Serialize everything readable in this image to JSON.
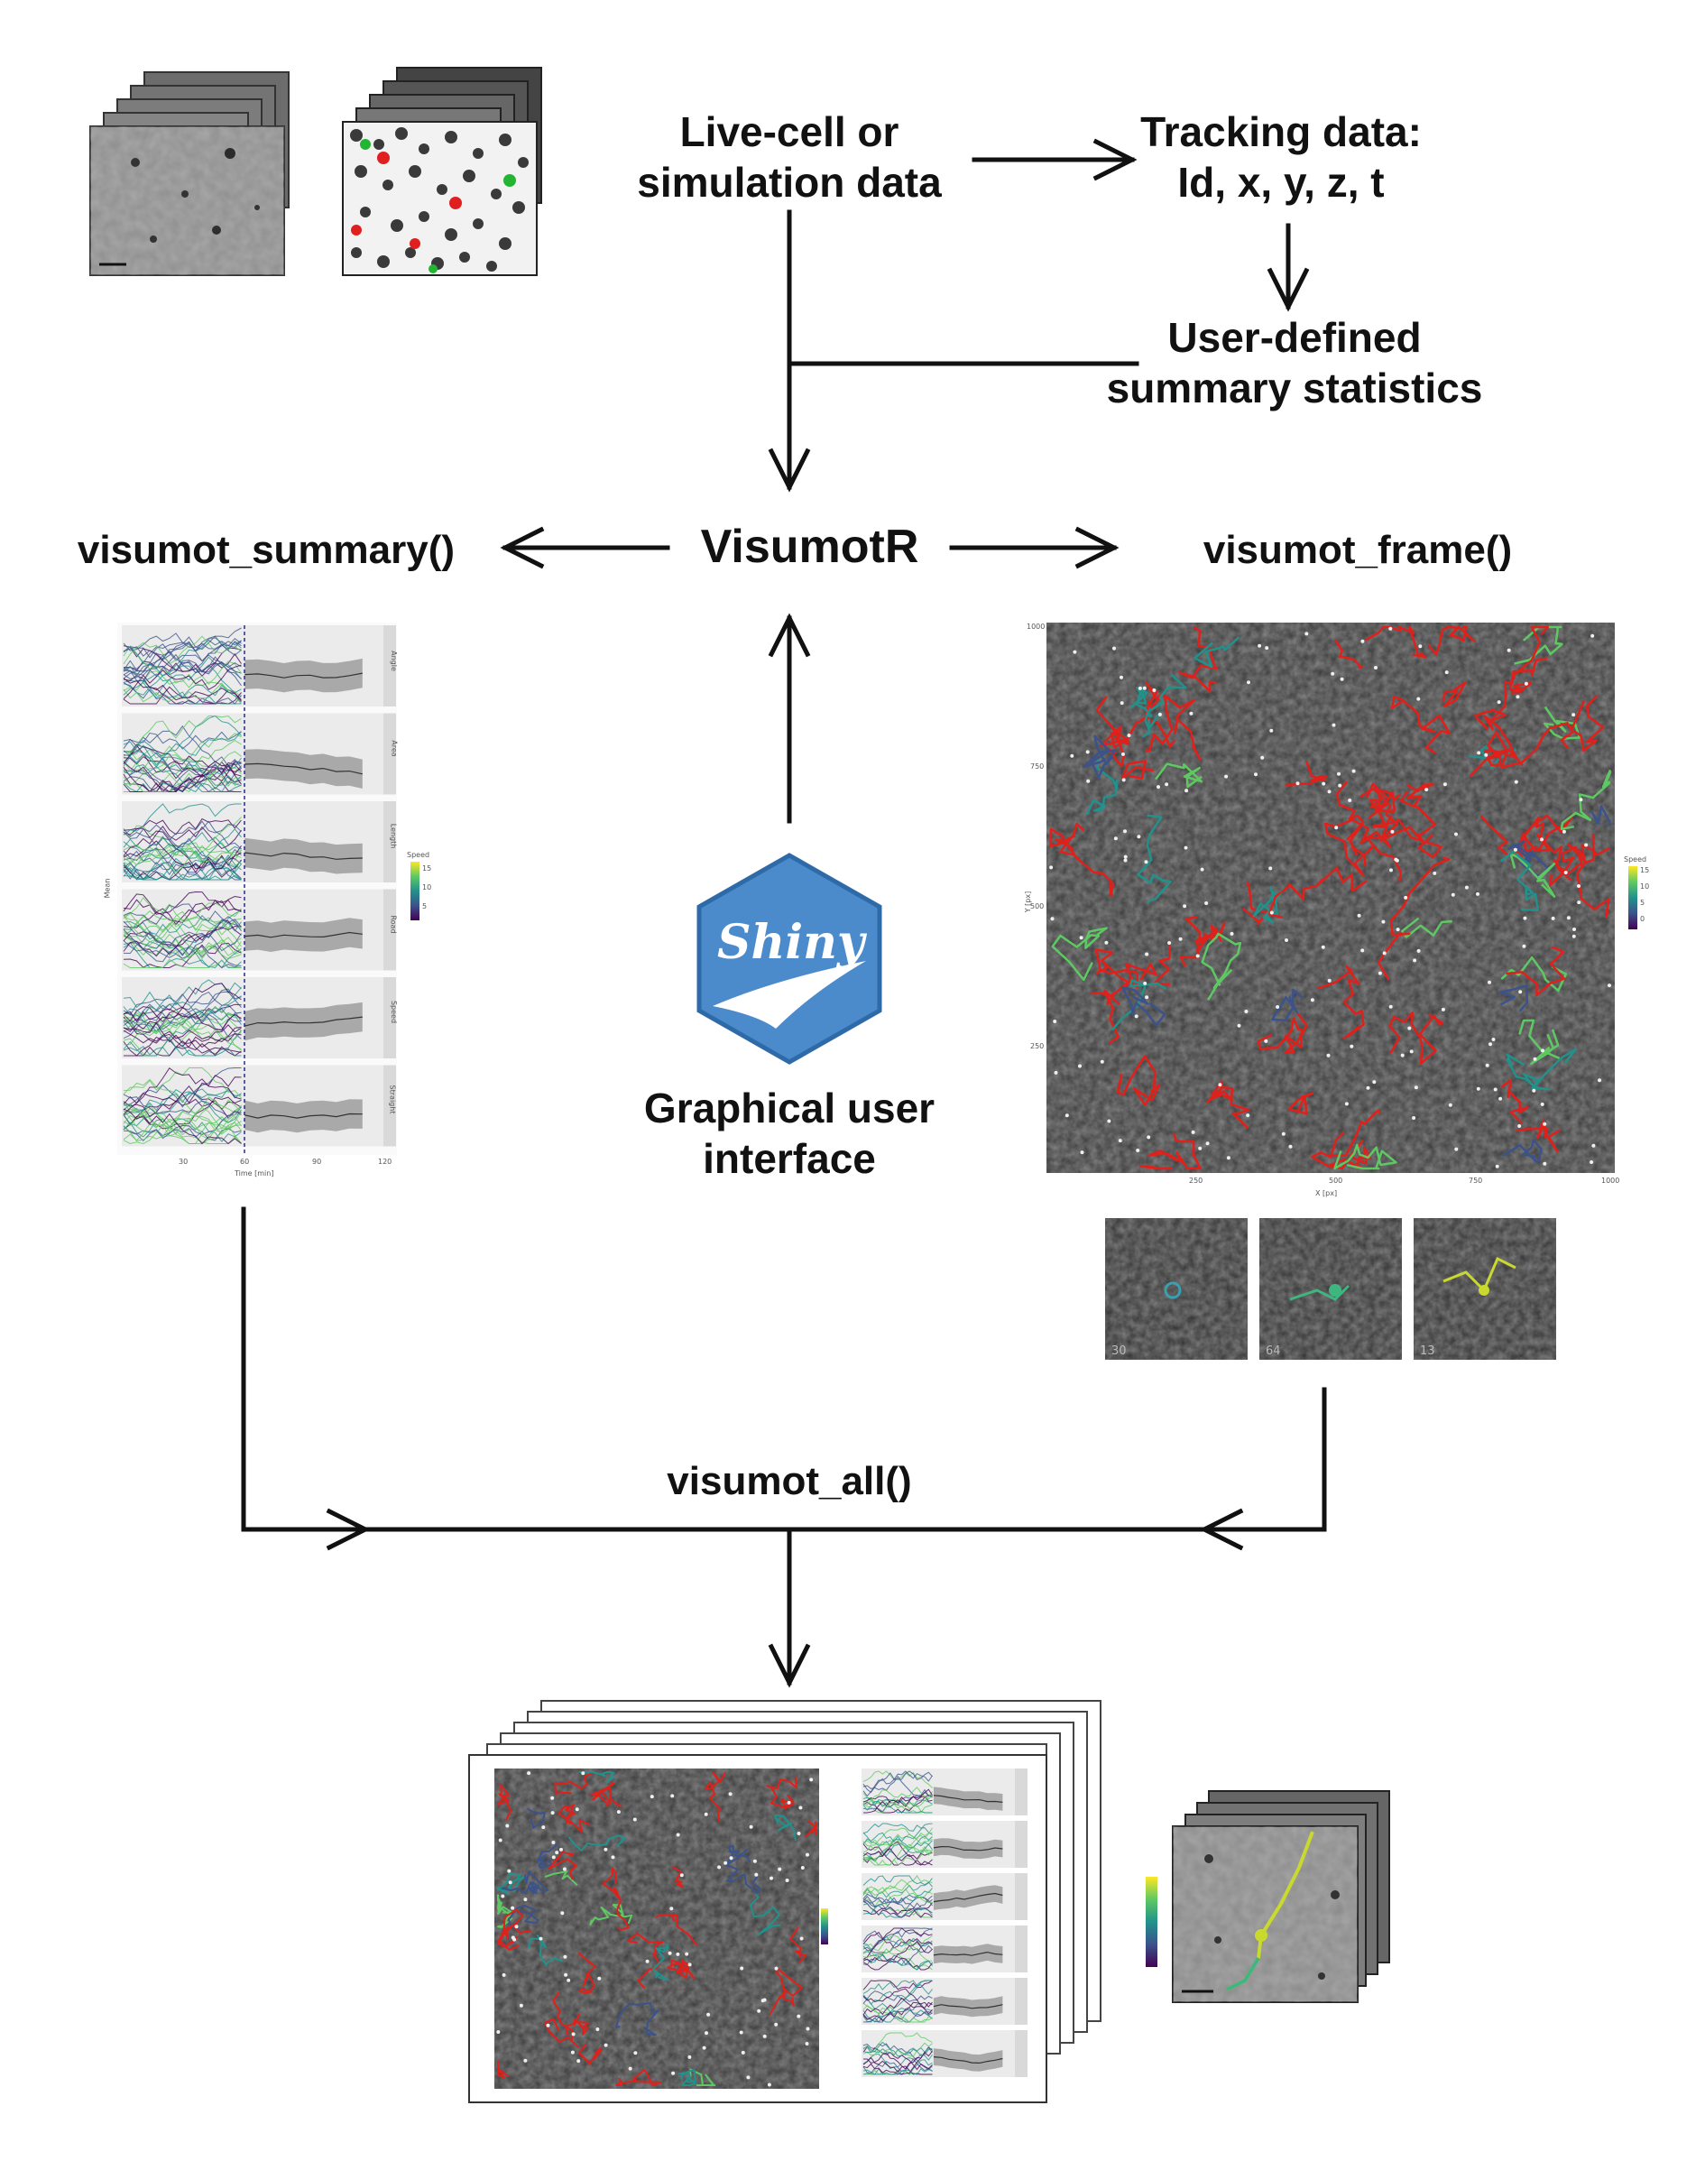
{
  "labels": {
    "source": "Live-cell or\nsimulation data",
    "tracking": "Tracking data:\nId, x, y, z, t",
    "user_stats": "User-defined\nsummary statistics",
    "core": "VisumotR",
    "summary_fn": "visumot_summary()",
    "frame_fn": "visumot_frame()",
    "all_fn": "visumot_all()",
    "gui": "Graphical user\ninterface",
    "shiny_logo": "Shiny"
  },
  "summary_plot": {
    "facets": [
      "Angle",
      "Area",
      "Length",
      "Road",
      "Speed",
      "Straight"
    ],
    "y_axis_label": "Mean",
    "x_axis_label": "Time [min]",
    "x_ticks": [
      "30",
      "60",
      "90",
      "120"
    ],
    "legend_title": "Speed",
    "legend_ticks": [
      "15",
      "10",
      "5"
    ]
  },
  "frame_plot": {
    "x_axis_label": "X [px]",
    "y_axis_label": "Y [px]",
    "x_ticks": [
      "250",
      "500",
      "750",
      "1000"
    ],
    "y_ticks": [
      "1000",
      "750",
      "500",
      "250"
    ],
    "legend_title": "Speed",
    "legend_ticks": [
      "15",
      "10",
      "5",
      "0"
    ]
  },
  "thumbnails": [
    "30",
    "64",
    "13"
  ],
  "colors": {
    "arrow": "#111111",
    "shiny_blue": "#4b8bcb",
    "track_red": "#e0201a",
    "viridis": [
      "#440154",
      "#3b528b",
      "#21918c",
      "#5ec962",
      "#fde725"
    ]
  }
}
